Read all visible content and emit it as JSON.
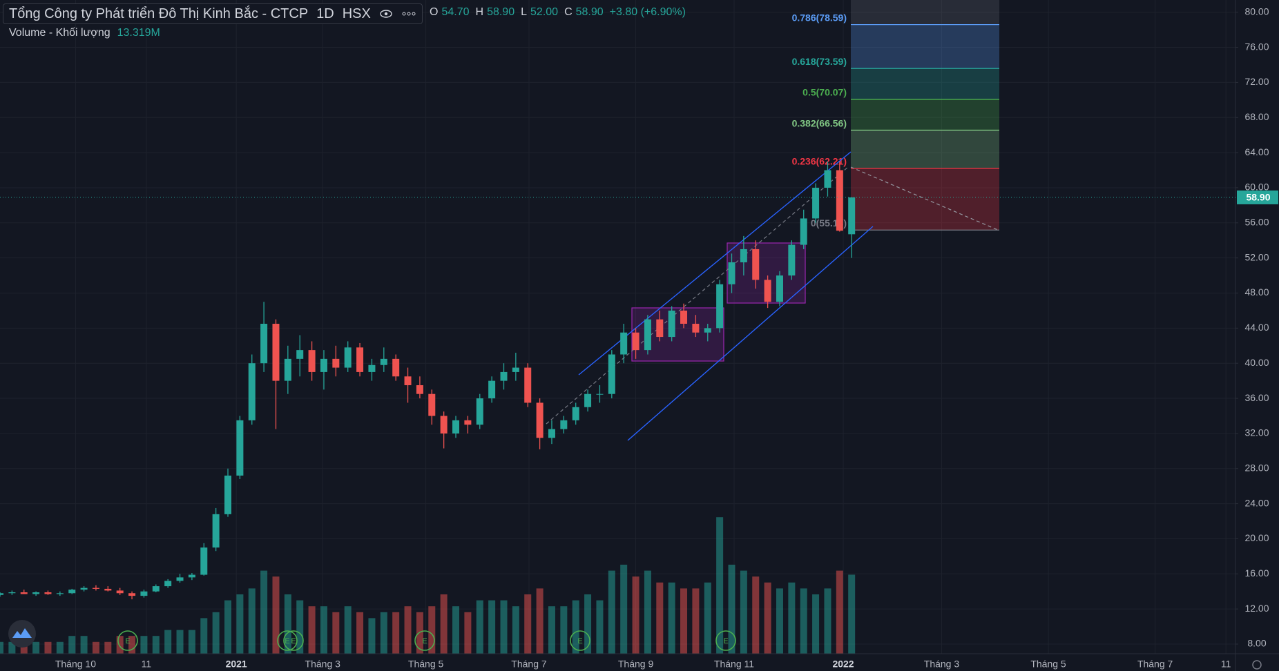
{
  "chart_data": {
    "type": "candlestick",
    "title": "Tổng Công ty Phát triển Đô Thị Kinh Bắc - CTCP",
    "interval": "1D",
    "exchange": "HSX",
    "legend": [
      {
        "key": "O",
        "value": "54.70"
      },
      {
        "key": "H",
        "value": "58.90"
      },
      {
        "key": "L",
        "value": "52.00"
      },
      {
        "key": "C",
        "value": "58.90"
      },
      {
        "key": "",
        "value": "+3.80 (+6.90%)"
      }
    ],
    "volume_title": "Volume - Khối lượng",
    "volume_label": "13.319M",
    "event_label": "E",
    "up_color": "#26a69a",
    "down_color": "#ef5350",
    "grid": true,
    "x": [
      0,
      1,
      2,
      3,
      4,
      5,
      6,
      7,
      8,
      9,
      10,
      11,
      12,
      13,
      14,
      15,
      16,
      17,
      18,
      19,
      20,
      21,
      22,
      23,
      24,
      25,
      26,
      27,
      28,
      29,
      30,
      31,
      32,
      33,
      34,
      35,
      36,
      37,
      38,
      39,
      40,
      41,
      42,
      43,
      44,
      45,
      46,
      47,
      48,
      49,
      50,
      51,
      52,
      53,
      54,
      55,
      56,
      57,
      58,
      59,
      60,
      61,
      62,
      63,
      64,
      65,
      66,
      67,
      68,
      69,
      70,
      71
    ],
    "open": [
      13.6,
      13.8,
      13.9,
      13.7,
      13.9,
      13.7,
      13.8,
      14.2,
      14.4,
      14.3,
      14.1,
      13.8,
      13.5,
      14.0,
      14.6,
      15.2,
      15.6,
      15.9,
      19.0,
      22.8,
      27.2,
      33.5,
      40.0,
      44.5,
      38.0,
      40.5,
      41.5,
      39.0,
      40.5,
      39.5,
      41.8,
      39.0,
      39.8,
      40.5,
      38.5,
      37.5,
      36.5,
      34.0,
      32.0,
      33.5,
      33.0,
      36.0,
      38.0,
      39.0,
      39.5,
      35.5,
      31.5,
      32.5,
      33.5,
      35.0,
      36.5,
      36.5,
      41.0,
      43.5,
      41.5,
      45.0,
      43.0,
      46.0,
      44.5,
      43.5,
      44.0,
      49.0,
      51.5,
      53.0,
      49.5,
      47.0,
      50.0,
      53.5,
      56.5,
      60.0,
      62.0,
      54.7
    ],
    "high": [
      13.9,
      14.1,
      14.2,
      14.0,
      14.1,
      14.0,
      14.3,
      14.6,
      14.7,
      14.6,
      14.4,
      14.0,
      14.2,
      14.8,
      15.4,
      16.0,
      16.1,
      19.5,
      23.5,
      28.0,
      34.0,
      41.0,
      47.0,
      45.0,
      42.0,
      43.2,
      42.5,
      41.5,
      42.0,
      42.5,
      42.3,
      40.5,
      41.8,
      41.0,
      39.5,
      38.5,
      37.0,
      34.5,
      34.0,
      34.0,
      36.5,
      38.5,
      40.0,
      41.2,
      40.0,
      36.0,
      33.5,
      34.0,
      35.5,
      37.0,
      37.5,
      41.5,
      44.5,
      44.0,
      45.5,
      46.0,
      46.5,
      46.8,
      45.5,
      44.5,
      49.5,
      52.5,
      54.5,
      54.0,
      50.0,
      50.5,
      54.0,
      57.5,
      60.5,
      63.0,
      63.0,
      58.9
    ],
    "low": [
      13.4,
      13.6,
      13.7,
      13.5,
      13.6,
      13.5,
      13.7,
      14.0,
      14.1,
      14.0,
      13.6,
      13.1,
      13.3,
      13.9,
      14.4,
      15.0,
      15.3,
      15.8,
      18.6,
      22.5,
      26.8,
      33.0,
      39.0,
      32.5,
      36.5,
      38.5,
      38.0,
      37.0,
      38.5,
      39.0,
      38.5,
      38.0,
      39.0,
      38.0,
      35.5,
      36.0,
      33.0,
      30.3,
      31.5,
      32.0,
      32.5,
      35.5,
      37.0,
      38.0,
      35.0,
      30.2,
      30.8,
      32.0,
      33.0,
      34.5,
      35.5,
      36.0,
      40.0,
      40.5,
      41.0,
      42.5,
      42.5,
      44.0,
      43.0,
      42.5,
      43.5,
      48.0,
      50.0,
      48.5,
      46.3,
      46.5,
      49.5,
      53.0,
      56.0,
      59.0,
      55.0,
      52.0
    ],
    "close": [
      13.8,
      13.9,
      13.7,
      13.9,
      13.7,
      13.8,
      14.2,
      14.4,
      14.3,
      14.1,
      13.8,
      13.5,
      14.0,
      14.6,
      15.2,
      15.6,
      15.9,
      19.0,
      22.8,
      27.2,
      33.5,
      40.0,
      44.5,
      38.0,
      40.5,
      41.5,
      39.0,
      40.5,
      39.5,
      41.8,
      39.0,
      39.8,
      40.5,
      38.5,
      37.5,
      36.5,
      34.0,
      32.0,
      33.5,
      33.0,
      36.0,
      38.0,
      39.0,
      39.5,
      35.5,
      31.5,
      32.5,
      33.5,
      35.0,
      36.5,
      36.5,
      41.0,
      43.5,
      41.5,
      45.0,
      43.0,
      46.0,
      44.5,
      43.5,
      44.0,
      49.0,
      51.5,
      53.0,
      49.5,
      47.0,
      50.0,
      53.5,
      56.5,
      60.0,
      62.0,
      55.1,
      58.9
    ],
    "volume": [
      2,
      2,
      2,
      2,
      2,
      2,
      3,
      3,
      2,
      2,
      3,
      3,
      3,
      3,
      4,
      4,
      4,
      6,
      7,
      9,
      10,
      11,
      14,
      13,
      10,
      9,
      8,
      8,
      7,
      8,
      7,
      6,
      7,
      7,
      8,
      7,
      8,
      10,
      8,
      7,
      9,
      9,
      9,
      8,
      10,
      11,
      8,
      8,
      9,
      10,
      9,
      14,
      15,
      13,
      14,
      12,
      12,
      11,
      11,
      12,
      23,
      15,
      14,
      13,
      12,
      11,
      12,
      11,
      10,
      11,
      14,
      13.319
    ],
    "xlim": [
      0,
      103
    ],
    "xticks": [
      {
        "value": 6.3,
        "label": "Tháng 10"
      },
      {
        "value": 12.2,
        "label": "11"
      },
      {
        "value": 19.7,
        "label": "2021"
      },
      {
        "value": 26.9,
        "label": "Tháng 3"
      },
      {
        "value": 35.5,
        "label": "Tháng 5"
      },
      {
        "value": 44.1,
        "label": "Tháng 7"
      },
      {
        "value": 53,
        "label": "Tháng 9"
      },
      {
        "value": 61.2,
        "label": "Tháng 11"
      },
      {
        "value": 70.3,
        "label": "2022"
      },
      {
        "value": 78.5,
        "label": "Tháng 3"
      },
      {
        "value": 87.4,
        "label": "Tháng 5"
      },
      {
        "value": 96.3,
        "label": "Tháng 7"
      },
      {
        "value": 102.2,
        "label": "11"
      }
    ],
    "ylim": [
      8,
      80
    ],
    "yticks": [
      {
        "value": 8,
        "label": "8.00"
      },
      {
        "value": 12,
        "label": "12.00"
      },
      {
        "value": 16,
        "label": "16.00"
      },
      {
        "value": 20,
        "label": "20.00"
      },
      {
        "value": 24,
        "label": "24.00"
      },
      {
        "value": 28,
        "label": "28.00"
      },
      {
        "value": 32,
        "label": "32.00"
      },
      {
        "value": 36,
        "label": "36.00"
      },
      {
        "value": 40,
        "label": "40.00"
      },
      {
        "value": 44,
        "label": "44.00"
      },
      {
        "value": 48,
        "label": "48.00"
      },
      {
        "value": 52,
        "label": "52.00"
      },
      {
        "value": 56,
        "label": "56.00"
      },
      {
        "value": 60,
        "label": "60.00"
      },
      {
        "value": 64,
        "label": "64.00"
      },
      {
        "value": 68,
        "label": "68.00"
      },
      {
        "value": 72,
        "label": "72.00"
      },
      {
        "value": 76,
        "label": "76.00"
      },
      {
        "value": 80,
        "label": "80.00"
      }
    ],
    "last_price": {
      "value": 58.9,
      "label": "58.90"
    },
    "fib_levels": [
      {
        "value": 78.59,
        "label": "0.786(78.59)",
        "color": "#5b9cf6"
      },
      {
        "value": 73.59,
        "label": "0.618(73.59)",
        "color": "#26a69a"
      },
      {
        "value": 70.07,
        "label": "0.5(70.07)",
        "color": "#4caf50"
      },
      {
        "value": 66.56,
        "label": "0.382(66.56)",
        "color": "#81c784"
      },
      {
        "value": 62.21,
        "label": "0.236(62.21)",
        "color": "#f23645"
      },
      {
        "value": 55.18,
        "label": "0(55.18)",
        "color": "#787b86"
      }
    ]
  }
}
